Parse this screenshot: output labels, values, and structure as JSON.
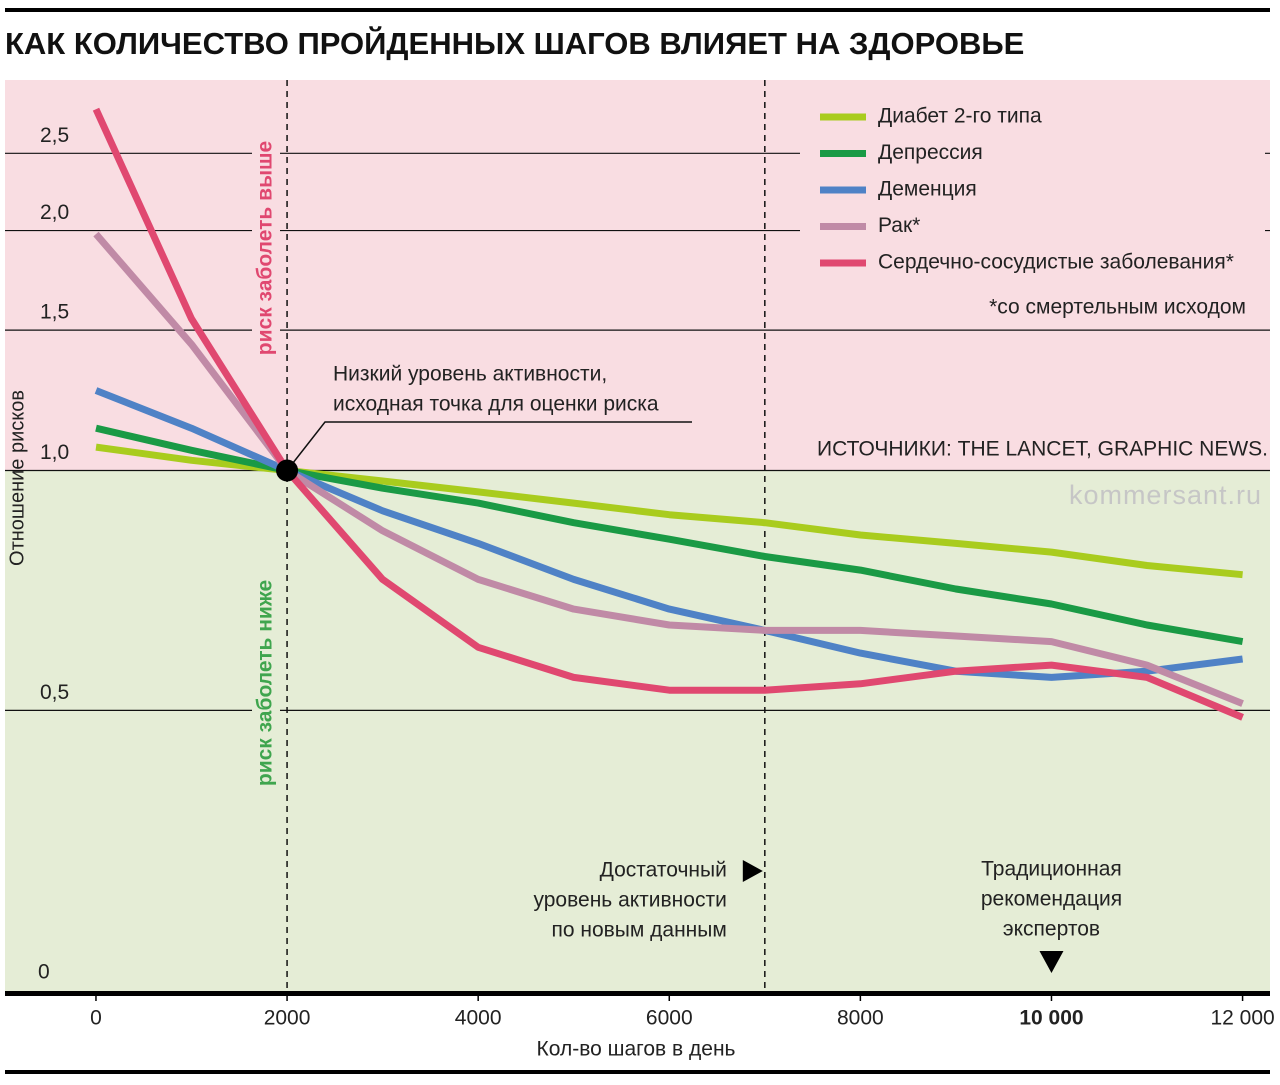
{
  "chart_data": {
    "type": "line",
    "title": "КАК КОЛИЧЕСТВО ПРОЙДЕННЫХ ШАГОВ ВЛИЯЕТ НА ЗДОРОВЬЕ",
    "y_label": "Отношение рисков",
    "x_label": "Кол-во шагов в день",
    "log_y": true,
    "grid": true,
    "legend": "top-right",
    "x": [
      0,
      1000,
      2000,
      3000,
      4000,
      5000,
      6000,
      7000,
      8000,
      9000,
      10000,
      11000,
      12000
    ],
    "series": [
      {
        "name": "Диабет 2-го типа",
        "color": "#a9cc1e",
        "values": [
          1.07,
          1.03,
          1.0,
          0.97,
          0.94,
          0.91,
          0.88,
          0.86,
          0.83,
          0.81,
          0.79,
          0.76,
          0.74
        ]
      },
      {
        "name": "Депрессия",
        "color": "#1a9a45",
        "values": [
          1.13,
          1.06,
          1.0,
          0.95,
          0.91,
          0.86,
          0.82,
          0.78,
          0.75,
          0.71,
          0.68,
          0.64,
          0.61
        ]
      },
      {
        "name": "Деменция",
        "color": "#4f82c6",
        "values": [
          1.26,
          1.13,
          1.0,
          0.89,
          0.81,
          0.73,
          0.67,
          0.63,
          0.59,
          0.56,
          0.55,
          0.56,
          0.58
        ]
      },
      {
        "name": "Рак*",
        "color": "#c08aa6",
        "values": [
          1.98,
          1.44,
          1.0,
          0.84,
          0.73,
          0.67,
          0.64,
          0.63,
          0.63,
          0.62,
          0.61,
          0.57,
          0.51
        ]
      },
      {
        "name": "Сердечно-сосудистые заболевания*",
        "color": "#e04870",
        "values": [
          2.84,
          1.55,
          1.0,
          0.73,
          0.6,
          0.55,
          0.53,
          0.53,
          0.54,
          0.56,
          0.57,
          0.55,
          0.49
        ]
      }
    ],
    "xlim": [
      -952,
      12287
    ],
    "ylim": [
      0.221,
      3.09
    ],
    "xticks": [
      0,
      2000,
      4000,
      6000,
      8000,
      {
        "value": 10000,
        "label": "10 000"
      },
      {
        "value": 12000,
        "label": "12 000"
      }
    ],
    "yticks": [
      {
        "value": 0.5,
        "label": "0,5"
      },
      {
        "value": 1.0,
        "label": "1,0"
      },
      {
        "value": 1.5,
        "label": "1,5"
      },
      {
        "value": 2.0,
        "label": "2,0"
      },
      {
        "value": 2.5,
        "label": "2,5"
      }
    ],
    "origin_label": "0",
    "zone_above": "риск заболеть выше",
    "zone_below": "риск заболеть ниже",
    "footnote": "*со смертельным исходом",
    "source": "ИСТОЧНИКИ: THE LANCET, GRAPHIC NEWS.",
    "watermark": "kommersant.ru",
    "reference_point": {
      "x": 2000,
      "y": 1.0,
      "label_lines": [
        "Низкий уровень активности,",
        "исходная точка для оценки риска"
      ]
    },
    "sufficient_level": {
      "x": 7000,
      "label_lines": [
        "Достаточный",
        "уровень активности",
        "по новым данным"
      ]
    },
    "expert_recommendation": {
      "x": 10000,
      "label_lines": [
        "Традиционная",
        "рекомендация",
        "экспертов"
      ]
    }
  }
}
